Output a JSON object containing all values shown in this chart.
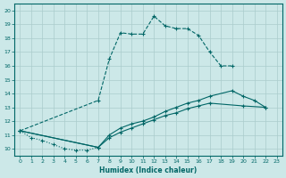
{
  "xlabel": "Humidex (Indice chaleur)",
  "bg_color": "#cce8e8",
  "grid_color": "#aacccc",
  "line_color": "#006666",
  "xlim": [
    -0.5,
    23.5
  ],
  "ylim": [
    9.5,
    20.5
  ],
  "xticks": [
    0,
    1,
    2,
    3,
    4,
    5,
    6,
    7,
    8,
    9,
    10,
    11,
    12,
    13,
    14,
    15,
    16,
    17,
    18,
    19,
    20,
    21,
    22,
    23
  ],
  "yticks": [
    10,
    11,
    12,
    13,
    14,
    15,
    16,
    17,
    18,
    19,
    20
  ],
  "curve1": {
    "x": [
      0,
      1,
      2,
      3,
      4,
      5,
      6,
      7
    ],
    "y": [
      11.3,
      10.8,
      10.6,
      10.3,
      10.0,
      9.9,
      9.9,
      10.1
    ],
    "ls": ":"
  },
  "curve2": {
    "x": [
      0,
      7,
      8,
      9,
      10,
      11,
      12,
      13,
      14,
      15,
      16,
      17,
      18,
      19
    ],
    "y": [
      11.3,
      13.5,
      16.5,
      18.4,
      18.3,
      18.3,
      19.6,
      18.9,
      18.7,
      18.7,
      18.2,
      17.0,
      16.0,
      16.0
    ],
    "ls": "--"
  },
  "curve3": {
    "x": [
      0,
      7,
      8,
      9,
      10,
      11,
      12,
      13,
      14,
      15,
      16,
      17,
      19,
      20,
      21,
      22
    ],
    "y": [
      11.3,
      10.1,
      11.0,
      11.5,
      11.8,
      12.0,
      12.3,
      12.7,
      13.0,
      13.3,
      13.5,
      13.8,
      14.2,
      13.8,
      13.5,
      13.0
    ],
    "ls": "-"
  },
  "curve4": {
    "x": [
      0,
      7,
      8,
      9,
      10,
      11,
      12,
      13,
      14,
      15,
      16,
      17,
      20,
      22
    ],
    "y": [
      11.3,
      10.1,
      10.8,
      11.2,
      11.5,
      11.8,
      12.1,
      12.4,
      12.6,
      12.9,
      13.1,
      13.3,
      13.1,
      13.0
    ],
    "ls": "-"
  }
}
